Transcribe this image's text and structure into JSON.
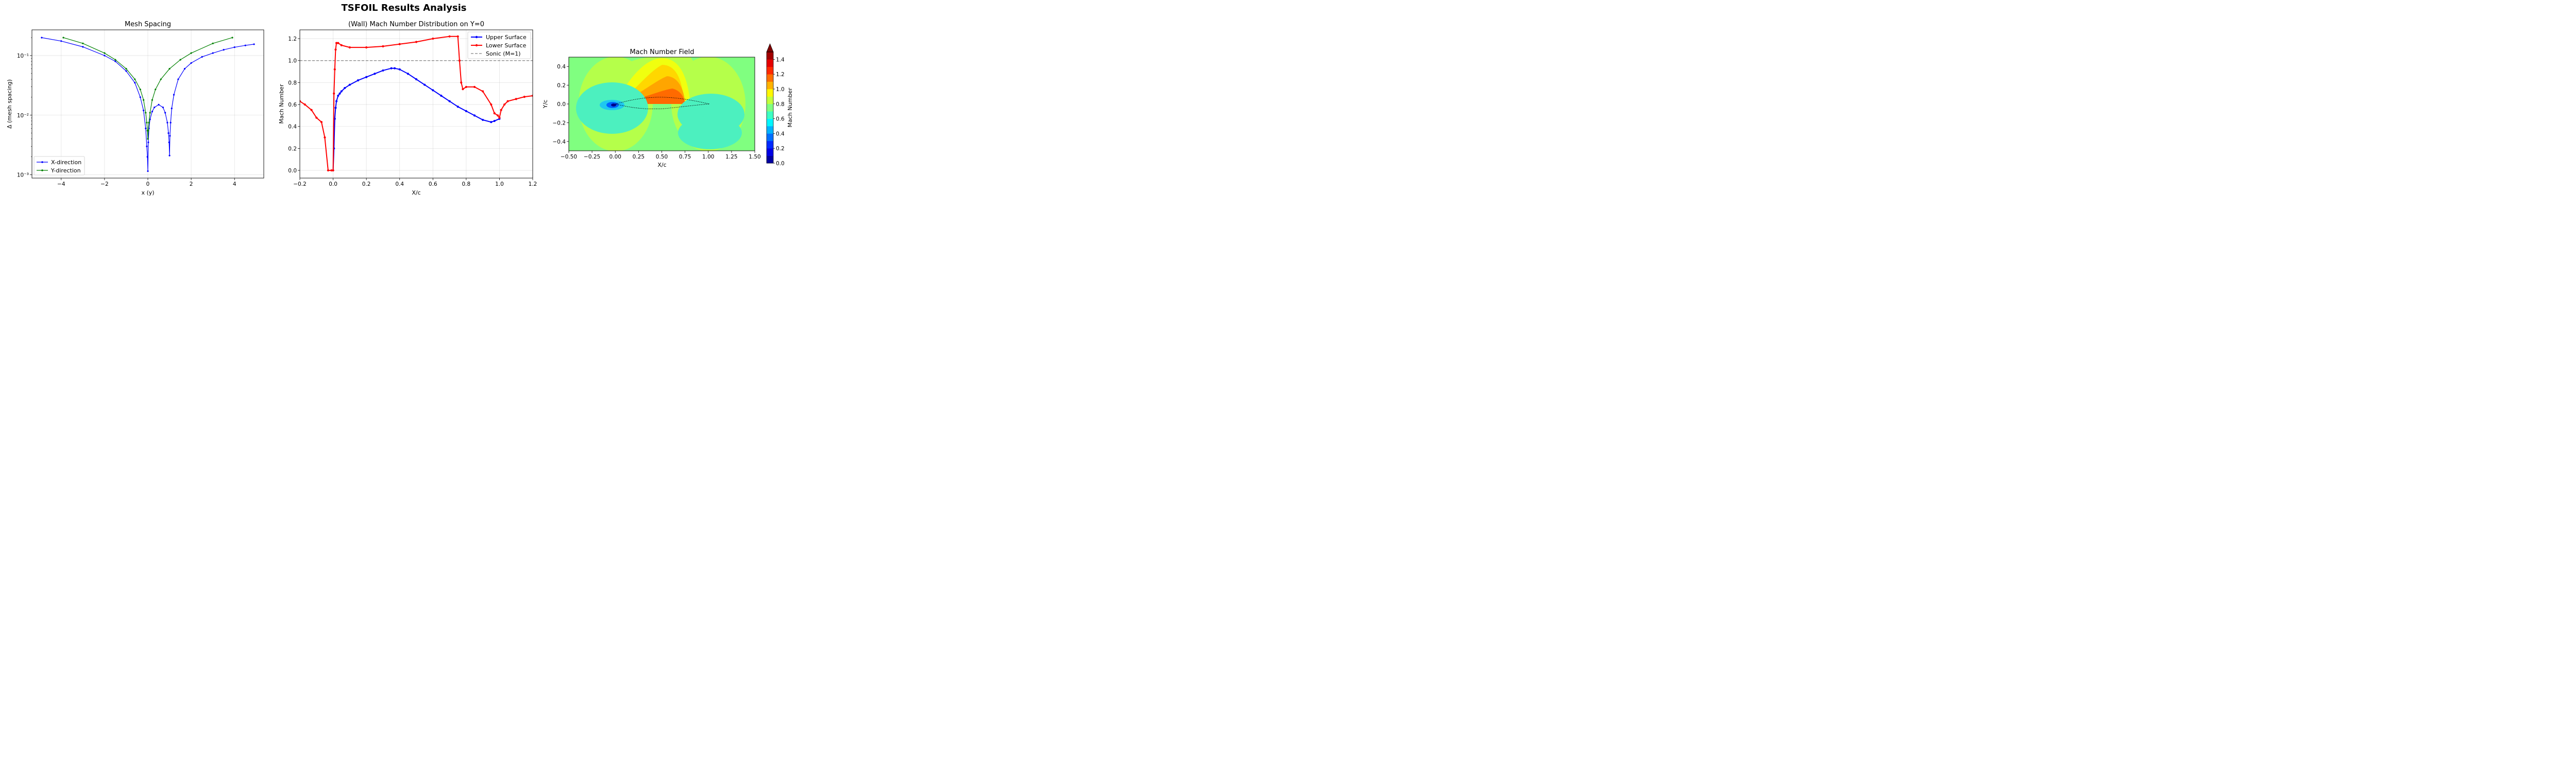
{
  "figure": {
    "title": "TSFOIL Results Analysis"
  },
  "chart_data": [
    {
      "type": "line",
      "title": "Mesh Spacing",
      "xlabel": "x (y)",
      "ylabel": "Δ (mesh spacing)",
      "xlim": [
        -5.35,
        5.35
      ],
      "ylim": [
        0.00088,
        0.27
      ],
      "yscale": "log",
      "grid": true,
      "legend_position": "lower-left",
      "x_ticks": [
        -4,
        -2,
        0,
        2,
        4
      ],
      "x_tick_labels": [
        "−4",
        "−2",
        "0",
        "2",
        "4"
      ],
      "y_ticks": [
        0.001,
        0.01,
        0.1
      ],
      "y_tick_labels": [
        "10⁻³",
        "10⁻²",
        "10⁻¹"
      ],
      "series": [
        {
          "name": "X-direction",
          "color": "#0000ff",
          "marker": "circle",
          "x": [
            -4.9,
            -4.0,
            -3.0,
            -2.0,
            -1.5,
            -1.0,
            -0.6,
            -0.35,
            -0.2,
            -0.1,
            -0.05,
            -0.02,
            0.0,
            0.02,
            0.05,
            0.1,
            0.2,
            0.3,
            0.5,
            0.7,
            0.8,
            0.9,
            0.95,
            0.98,
            1.0,
            1.02,
            1.05,
            1.1,
            1.2,
            1.4,
            1.7,
            2.0,
            2.5,
            3.0,
            3.5,
            4.0,
            4.5,
            4.9
          ],
          "y": [
            0.2,
            0.175,
            0.14,
            0.1,
            0.08,
            0.055,
            0.035,
            0.02,
            0.012,
            0.006,
            0.003,
            0.002,
            0.00115,
            0.0035,
            0.006,
            0.0085,
            0.0115,
            0.0135,
            0.015,
            0.0135,
            0.011,
            0.0075,
            0.005,
            0.0035,
            0.0021,
            0.0045,
            0.0075,
            0.013,
            0.022,
            0.04,
            0.06,
            0.075,
            0.095,
            0.11,
            0.125,
            0.138,
            0.148,
            0.155
          ]
        },
        {
          "name": "Y-direction",
          "color": "#008000",
          "marker": "circle",
          "x": [
            -3.9,
            -3.0,
            -2.0,
            -1.5,
            -1.0,
            -0.6,
            -0.35,
            -0.2,
            -0.1,
            -0.05,
            -0.02,
            0.0,
            0.02,
            0.05,
            0.1,
            0.2,
            0.35,
            0.6,
            1.0,
            1.5,
            2.0,
            3.0,
            3.9
          ],
          "y": [
            0.2,
            0.16,
            0.11,
            0.085,
            0.06,
            0.04,
            0.027,
            0.018,
            0.011,
            0.0075,
            0.0055,
            0.004,
            0.0055,
            0.0075,
            0.011,
            0.018,
            0.027,
            0.04,
            0.06,
            0.085,
            0.11,
            0.16,
            0.2
          ]
        }
      ]
    },
    {
      "type": "line",
      "title": "(Wall) Mach Number Distribution on Y=0",
      "xlabel": "X/c",
      "ylabel": "Mach Number",
      "xlim": [
        -0.2,
        1.2
      ],
      "ylim": [
        -0.07,
        1.28
      ],
      "grid": true,
      "legend_position": "top-right",
      "x_ticks": [
        -0.2,
        0.0,
        0.2,
        0.4,
        0.6,
        0.8,
        1.0,
        1.2
      ],
      "x_tick_labels": [
        "−0.2",
        "0.0",
        "0.2",
        "0.4",
        "0.6",
        "0.8",
        "1.0",
        "1.2"
      ],
      "y_ticks": [
        0.0,
        0.2,
        0.4,
        0.6,
        0.8,
        1.0,
        1.2
      ],
      "y_tick_labels": [
        "0.0",
        "0.2",
        "0.4",
        "0.6",
        "0.8",
        "1.0",
        "1.2"
      ],
      "reference_line": {
        "name": "Sonic (M=1)",
        "y": 1.0,
        "color": "#808080",
        "style": "dashed"
      },
      "series": [
        {
          "name": "Upper Surface",
          "color": "#0000ff",
          "marker": "circle",
          "x": [
            0.0,
            0.005,
            0.01,
            0.015,
            0.02,
            0.03,
            0.04,
            0.05,
            0.07,
            0.1,
            0.15,
            0.2,
            0.25,
            0.3,
            0.35,
            0.37,
            0.4,
            0.45,
            0.5,
            0.55,
            0.6,
            0.65,
            0.7,
            0.75,
            0.8,
            0.85,
            0.9,
            0.95,
            0.97,
            1.0
          ],
          "y": [
            0.0,
            0.2,
            0.47,
            0.57,
            0.63,
            0.68,
            0.7,
            0.72,
            0.75,
            0.78,
            0.82,
            0.85,
            0.88,
            0.91,
            0.93,
            0.93,
            0.92,
            0.88,
            0.83,
            0.78,
            0.73,
            0.68,
            0.63,
            0.58,
            0.54,
            0.5,
            0.46,
            0.44,
            0.45,
            0.47
          ]
        },
        {
          "name": "Lower Surface",
          "color": "#ff0000",
          "marker": "circle",
          "x": [
            -0.2,
            -0.17,
            -0.13,
            -0.1,
            -0.07,
            -0.05,
            -0.03,
            -0.01,
            0.0,
            0.005,
            0.01,
            0.015,
            0.02,
            0.03,
            0.05,
            0.1,
            0.2,
            0.3,
            0.4,
            0.5,
            0.6,
            0.7,
            0.75,
            0.76,
            0.77,
            0.78,
            0.8,
            0.85,
            0.9,
            0.95,
            0.97,
            0.99,
            1.0,
            1.01,
            1.03,
            1.05,
            1.1,
            1.15,
            1.2
          ],
          "y": [
            0.63,
            0.6,
            0.55,
            0.48,
            0.44,
            0.3,
            0.0,
            0.0,
            0.0,
            0.7,
            0.92,
            1.1,
            1.16,
            1.16,
            1.14,
            1.12,
            1.12,
            1.13,
            1.15,
            1.17,
            1.2,
            1.22,
            1.22,
            1.0,
            0.8,
            0.74,
            0.76,
            0.76,
            0.72,
            0.6,
            0.52,
            0.5,
            0.48,
            0.55,
            0.6,
            0.63,
            0.65,
            0.67,
            0.68
          ]
        }
      ]
    },
    {
      "type": "heatmap",
      "subtype": "filled-contour",
      "title": "Mach Number Field",
      "xlabel": "X/c",
      "ylabel": "Y/c",
      "xlim": [
        -0.5,
        1.5
      ],
      "ylim": [
        -0.5,
        0.5
      ],
      "x_ticks": [
        -0.5,
        -0.25,
        0.0,
        0.25,
        0.5,
        0.75,
        1.0,
        1.25,
        1.5
      ],
      "x_tick_labels": [
        "−0.50",
        "−0.25",
        "0.00",
        "0.25",
        "0.50",
        "0.75",
        "1.00",
        "1.25",
        "1.50"
      ],
      "y_ticks": [
        -0.4,
        -0.2,
        0.0,
        0.2,
        0.4
      ],
      "y_tick_labels": [
        "−0.4",
        "−0.2",
        "0.0",
        "0.2",
        "0.4"
      ],
      "colorbar": {
        "label": "Mach Number",
        "vmin": 0.0,
        "vmax": 1.5,
        "extend": "max",
        "ticks": [
          0.0,
          0.2,
          0.4,
          0.6,
          0.8,
          1.0,
          1.2,
          1.4
        ],
        "tick_labels": [
          "0.0",
          "0.2",
          "0.4",
          "0.6",
          "0.8",
          "1.0",
          "1.2",
          "1.4"
        ],
        "colormap": "jet"
      },
      "background_mach": 0.75,
      "airfoil_outline": true
    }
  ]
}
